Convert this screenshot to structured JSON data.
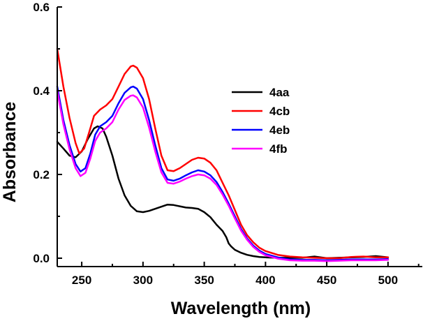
{
  "chart_data": {
    "type": "line",
    "title": "",
    "xlabel": "Wavelength (nm)",
    "ylabel": "Absorbance",
    "xlim": [
      230,
      528
    ],
    "ylim": [
      -0.02,
      0.6
    ],
    "xticks": [
      250,
      300,
      350,
      400,
      450,
      500
    ],
    "xtick_labels": [
      "250",
      "300",
      "350",
      "400",
      "450",
      "500"
    ],
    "yticks": [
      0.0,
      0.2,
      0.4,
      0.6
    ],
    "ytick_labels": [
      "0.0",
      "0.2",
      "0.4",
      "0.6"
    ],
    "legend_position": "center-right",
    "series": [
      {
        "name": "4aa",
        "color": "#000000",
        "x": [
          230,
          235,
          240,
          245,
          250,
          255,
          260,
          263,
          267,
          270,
          275,
          280,
          285,
          290,
          295,
          300,
          305,
          310,
          315,
          320,
          325,
          330,
          335,
          340,
          345,
          350,
          355,
          360,
          365,
          368,
          370,
          372,
          375,
          380,
          385,
          390,
          395,
          400,
          410,
          420,
          430,
          440,
          450,
          460,
          470,
          480,
          490,
          500
        ],
        "y": [
          0.278,
          0.262,
          0.245,
          0.241,
          0.255,
          0.285,
          0.31,
          0.315,
          0.31,
          0.29,
          0.245,
          0.19,
          0.15,
          0.125,
          0.112,
          0.11,
          0.113,
          0.118,
          0.123,
          0.128,
          0.127,
          0.124,
          0.121,
          0.12,
          0.118,
          0.11,
          0.098,
          0.08,
          0.065,
          0.05,
          0.035,
          0.028,
          0.02,
          0.013,
          0.008,
          0.005,
          0.003,
          0.002,
          0.001,
          0.001,
          0.001,
          0.004,
          0.0,
          0.001,
          0.002,
          0.003,
          0.005,
          0.002
        ]
      },
      {
        "name": "4cb",
        "color": "#ff0000",
        "x": [
          230,
          235,
          240,
          245,
          248,
          252,
          256,
          260,
          265,
          270,
          275,
          280,
          285,
          290,
          292,
          295,
          300,
          305,
          310,
          315,
          320,
          325,
          330,
          335,
          340,
          345,
          350,
          355,
          360,
          365,
          370,
          375,
          380,
          385,
          390,
          395,
          400,
          410,
          420,
          430,
          440,
          450,
          460,
          470,
          480,
          490,
          500
        ],
        "y": [
          0.5,
          0.41,
          0.335,
          0.275,
          0.25,
          0.262,
          0.3,
          0.34,
          0.355,
          0.365,
          0.38,
          0.41,
          0.44,
          0.458,
          0.46,
          0.455,
          0.43,
          0.38,
          0.31,
          0.245,
          0.21,
          0.208,
          0.215,
          0.225,
          0.235,
          0.24,
          0.238,
          0.228,
          0.21,
          0.18,
          0.15,
          0.115,
          0.08,
          0.055,
          0.038,
          0.025,
          0.017,
          0.008,
          0.004,
          0.002,
          0.001,
          0.0,
          0.0,
          0.003,
          0.004,
          0.002,
          0.002
        ]
      },
      {
        "name": "4eb",
        "color": "#0000ff",
        "x": [
          230,
          235,
          240,
          245,
          249,
          253,
          257,
          261,
          265,
          270,
          275,
          280,
          285,
          290,
          292,
          295,
          300,
          305,
          310,
          315,
          320,
          325,
          330,
          335,
          340,
          345,
          350,
          355,
          360,
          365,
          370,
          375,
          380,
          385,
          390,
          395,
          400,
          410,
          420,
          430,
          440,
          450,
          460,
          470,
          480,
          490,
          500
        ],
        "y": [
          0.41,
          0.33,
          0.27,
          0.225,
          0.207,
          0.215,
          0.25,
          0.295,
          0.315,
          0.325,
          0.34,
          0.37,
          0.395,
          0.408,
          0.41,
          0.405,
          0.38,
          0.33,
          0.27,
          0.215,
          0.188,
          0.185,
          0.19,
          0.198,
          0.205,
          0.21,
          0.207,
          0.198,
          0.182,
          0.158,
          0.13,
          0.1,
          0.07,
          0.047,
          0.03,
          0.018,
          0.01,
          0.002,
          -0.003,
          -0.004,
          -0.004,
          -0.005,
          -0.004,
          -0.003,
          -0.003,
          -0.003,
          -0.002
        ]
      },
      {
        "name": "4fb",
        "color": "#ff00ff",
        "x": [
          230,
          235,
          240,
          245,
          249,
          253,
          257,
          261,
          265,
          270,
          275,
          280,
          285,
          290,
          292,
          295,
          300,
          305,
          310,
          315,
          320,
          325,
          330,
          335,
          340,
          345,
          350,
          355,
          360,
          365,
          370,
          375,
          380,
          385,
          390,
          395,
          400,
          410,
          420,
          430,
          440,
          450,
          460,
          470,
          480,
          490,
          500
        ],
        "y": [
          0.4,
          0.32,
          0.26,
          0.215,
          0.196,
          0.204,
          0.238,
          0.28,
          0.3,
          0.31,
          0.325,
          0.355,
          0.378,
          0.388,
          0.389,
          0.384,
          0.36,
          0.312,
          0.255,
          0.205,
          0.18,
          0.178,
          0.183,
          0.19,
          0.196,
          0.2,
          0.198,
          0.19,
          0.175,
          0.152,
          0.125,
          0.095,
          0.066,
          0.044,
          0.027,
          0.015,
          0.007,
          -0.001,
          -0.005,
          -0.006,
          -0.006,
          -0.007,
          -0.006,
          -0.005,
          -0.005,
          -0.005,
          -0.004
        ]
      }
    ]
  }
}
